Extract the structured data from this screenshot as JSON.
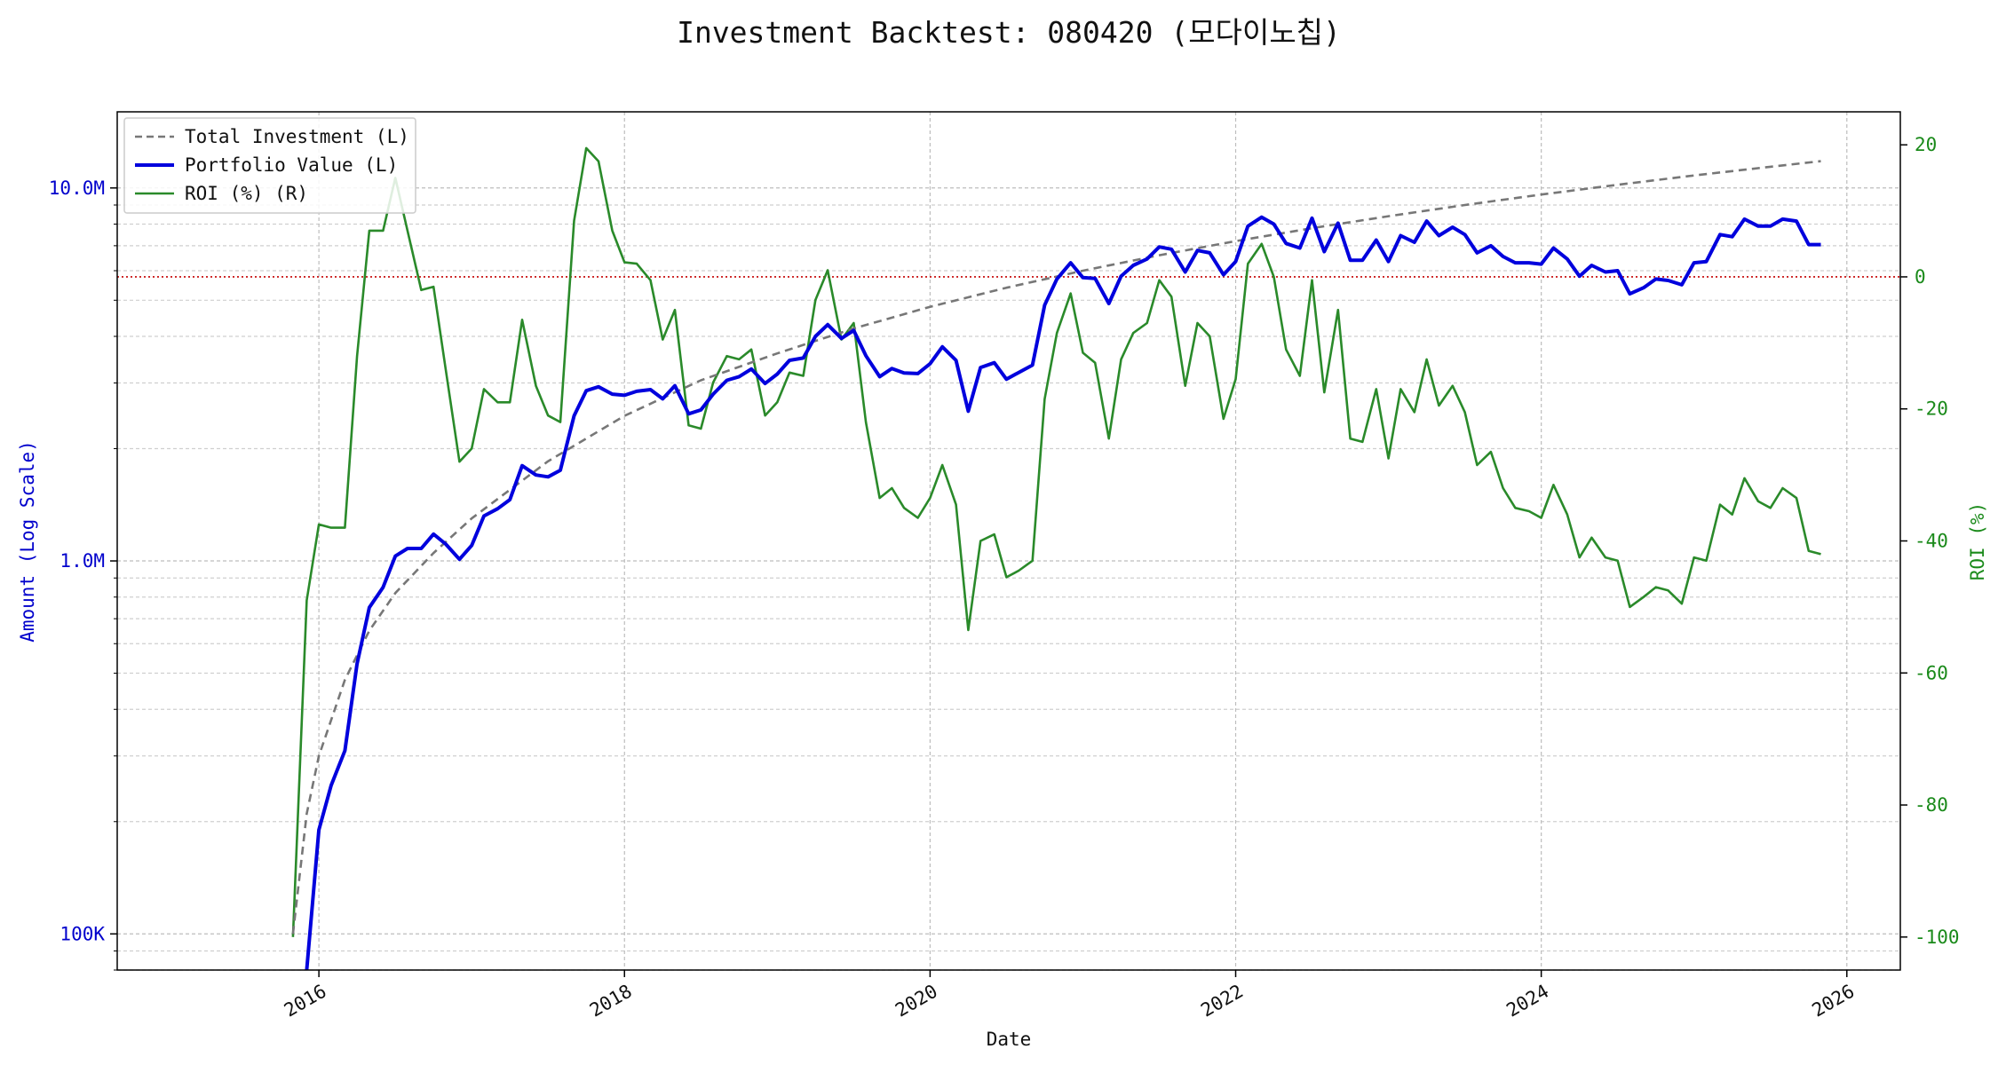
{
  "chart_data": {
    "type": "line",
    "title": "Investment Backtest: 080420 (모다이노칩)",
    "xlabel": "Date",
    "ylabel_left": "Amount (Log Scale)",
    "ylabel_right": "ROI (%)",
    "left_scale": "log",
    "ylim_left": [
      80000,
      16000000
    ],
    "ylim_right": [
      -105,
      25
    ],
    "xlim": [
      2014.68,
      2026.35
    ],
    "grid": true,
    "legend_position": "top-left",
    "left_ticks": [
      {
        "value": 100000,
        "label": "100K"
      },
      {
        "value": 1000000,
        "label": "1.0M"
      },
      {
        "value": 10000000,
        "label": "10.0M"
      }
    ],
    "right_ticks": [
      20,
      0,
      -20,
      -40,
      -60,
      -80,
      -100
    ],
    "x_ticks": [
      {
        "value": 2016,
        "label": "2016"
      },
      {
        "value": 2018,
        "label": "2018"
      },
      {
        "value": 2020,
        "label": "2020"
      },
      {
        "value": 2022,
        "label": "2022"
      },
      {
        "value": 2024,
        "label": "2024"
      },
      {
        "value": 2026,
        "label": "2026"
      }
    ],
    "reference_line_roi": 0,
    "series": [
      {
        "name": "Total Investment (L)",
        "axis": "left",
        "color": "#777777",
        "style": "dashed",
        "x": [
          2015.83,
          2015.92,
          2016.0,
          2016.17,
          2016.33,
          2016.5,
          2016.75,
          2017.0,
          2017.5,
          2018.0,
          2018.5,
          2019.0,
          2019.5,
          2020.0,
          2020.5,
          2021.0,
          2021.5,
          2022.0,
          2022.5,
          2023.0,
          2023.5,
          2024.0,
          2024.5,
          2025.0,
          2025.5,
          2025.83
        ],
        "values": [
          100000,
          210000,
          300000,
          480000,
          650000,
          820000,
          1050000,
          1300000,
          1850000,
          2450000,
          3050000,
          3600000,
          4200000,
          4800000,
          5400000,
          6000000,
          6600000,
          7200000,
          7800000,
          8400000,
          9000000,
          9600000,
          10200000,
          10800000,
          11400000,
          11800000
        ]
      },
      {
        "name": "Portfolio Value (L)",
        "axis": "left",
        "color": "#0000dd",
        "style": "solid",
        "x": [
          2015.92,
          2016.0,
          2016.08,
          2016.17,
          2016.25,
          2016.33,
          2016.42,
          2016.5,
          2016.58,
          2016.67,
          2016.75,
          2016.83,
          2016.92,
          2017.0,
          2017.08,
          2017.17,
          2017.25,
          2017.33,
          2017.42,
          2017.5,
          2017.58,
          2017.67,
          2017.75,
          2017.83,
          2017.92,
          2018.0,
          2018.08,
          2018.17,
          2018.25,
          2018.33,
          2018.42,
          2018.5,
          2018.58,
          2018.67,
          2018.75,
          2018.83,
          2018.92,
          2019.0,
          2019.08,
          2019.17,
          2019.25,
          2019.33,
          2019.42,
          2019.5,
          2019.58,
          2019.67,
          2019.75,
          2019.83,
          2019.92,
          2020.0,
          2020.08,
          2020.17,
          2020.25,
          2020.33,
          2020.42,
          2020.5,
          2020.58,
          2020.67,
          2020.75,
          2020.83,
          2020.92,
          2021.0,
          2021.08,
          2021.17,
          2021.25,
          2021.33,
          2021.42,
          2021.5,
          2021.58,
          2021.67,
          2021.75,
          2021.83,
          2021.92,
          2022.0,
          2022.08,
          2022.17,
          2022.25,
          2022.33,
          2022.42,
          2022.5,
          2022.58,
          2022.67,
          2022.75,
          2022.83,
          2022.92,
          2023.0,
          2023.08,
          2023.17,
          2023.25,
          2023.33,
          2023.42,
          2023.5,
          2023.58,
          2023.67,
          2023.75,
          2023.83,
          2023.92,
          2024.0,
          2024.08,
          2024.17,
          2024.25,
          2024.33,
          2024.42,
          2024.5,
          2024.58,
          2024.67,
          2024.75,
          2024.83,
          2024.92,
          2025.0,
          2025.08,
          2025.17,
          2025.25,
          2025.33,
          2025.42,
          2025.5,
          2025.58,
          2025.67,
          2025.75,
          2025.83
        ],
        "values": [
          80000,
          190000,
          250000,
          310000,
          530000,
          750000,
          850000,
          1030000,
          1080000,
          1080000,
          1180000,
          1110000,
          1010000,
          1100000,
          1320000,
          1380000,
          1460000,
          1800000,
          1700000,
          1680000,
          1750000,
          2450000,
          2860000,
          2930000,
          2800000,
          2780000,
          2850000,
          2880000,
          2720000,
          2950000,
          2480000,
          2540000,
          2800000,
          3050000,
          3120000,
          3270000,
          2990000,
          3170000,
          3450000,
          3500000,
          4000000,
          4300000,
          3950000,
          4150000,
          3550000,
          3120000,
          3280000,
          3190000,
          3180000,
          3380000,
          3750000,
          3450000,
          2520000,
          3300000,
          3400000,
          3070000,
          3200000,
          3350000,
          4850000,
          5700000,
          6300000,
          5750000,
          5720000,
          4900000,
          5800000,
          6200000,
          6450000,
          6950000,
          6850000,
          5950000,
          6800000,
          6700000,
          5850000,
          6350000,
          7900000,
          8350000,
          8000000,
          7100000,
          6900000,
          8300000,
          6750000,
          8050000,
          6400000,
          6400000,
          7250000,
          6350000,
          7450000,
          7150000,
          8150000,
          7450000,
          7850000,
          7500000,
          6700000,
          7000000,
          6550000,
          6300000,
          6300000,
          6250000,
          6900000,
          6450000,
          5800000,
          6200000,
          5950000,
          6000000,
          5200000,
          5400000,
          5700000,
          5650000,
          5500000,
          6300000,
          6350000,
          7500000,
          7400000,
          8250000,
          7900000,
          7900000,
          8250000,
          8150000,
          7050000,
          7050000
        ]
      },
      {
        "name": "ROI (%) (R)",
        "axis": "right",
        "color": "#2a8a2a",
        "style": "solid",
        "x": [
          2015.83,
          2015.92,
          2016.0,
          2016.08,
          2016.17,
          2016.25,
          2016.33,
          2016.42,
          2016.5,
          2016.58,
          2016.67,
          2016.75,
          2016.83,
          2016.92,
          2017.0,
          2017.08,
          2017.17,
          2017.25,
          2017.33,
          2017.42,
          2017.5,
          2017.58,
          2017.67,
          2017.75,
          2017.83,
          2017.92,
          2018.0,
          2018.08,
          2018.17,
          2018.25,
          2018.33,
          2018.42,
          2018.5,
          2018.58,
          2018.67,
          2018.75,
          2018.83,
          2018.92,
          2019.0,
          2019.08,
          2019.17,
          2019.25,
          2019.33,
          2019.42,
          2019.5,
          2019.58,
          2019.67,
          2019.75,
          2019.83,
          2019.92,
          2020.0,
          2020.08,
          2020.17,
          2020.25,
          2020.33,
          2020.42,
          2020.5,
          2020.58,
          2020.67,
          2020.75,
          2020.83,
          2020.92,
          2021.0,
          2021.08,
          2021.17,
          2021.25,
          2021.33,
          2021.42,
          2021.5,
          2021.58,
          2021.67,
          2021.75,
          2021.83,
          2021.92,
          2022.0,
          2022.08,
          2022.17,
          2022.25,
          2022.33,
          2022.42,
          2022.5,
          2022.58,
          2022.67,
          2022.75,
          2022.83,
          2022.92,
          2023.0,
          2023.08,
          2023.17,
          2023.25,
          2023.33,
          2023.42,
          2023.5,
          2023.58,
          2023.67,
          2023.75,
          2023.83,
          2023.92,
          2024.0,
          2024.08,
          2024.17,
          2024.25,
          2024.33,
          2024.42,
          2024.5,
          2024.58,
          2024.67,
          2024.75,
          2024.83,
          2024.92,
          2025.0,
          2025.08,
          2025.17,
          2025.25,
          2025.33,
          2025.42,
          2025.5,
          2025.58,
          2025.67,
          2025.75,
          2025.83
        ],
        "values": [
          -100,
          -49,
          -37.5,
          -38,
          -38,
          -12,
          7,
          7,
          15,
          7,
          -2,
          -1.5,
          -14,
          -28,
          -26,
          -17,
          -19,
          -19,
          -6.5,
          -16.5,
          -21,
          -22,
          8.5,
          19.5,
          17.5,
          7,
          2.2,
          2,
          -0.5,
          -9.5,
          -5,
          -22.5,
          -23,
          -16,
          -12,
          -12.5,
          -11,
          -21,
          -19,
          -14.5,
          -15,
          -3.5,
          1,
          -9.5,
          -7,
          -22,
          -33.5,
          -32,
          -35,
          -36.5,
          -33.5,
          -28.5,
          -34.5,
          -53.5,
          -40,
          -39,
          -45.5,
          -44.5,
          -43,
          -18.5,
          -8.5,
          -2.5,
          -11.5,
          -13,
          -24.5,
          -12.5,
          -8.5,
          -7,
          -0.5,
          -3,
          -16.5,
          -7,
          -9,
          -21.5,
          -15.5,
          2,
          5,
          0,
          -11,
          -15,
          -0.5,
          -17.5,
          -5,
          -24.5,
          -25,
          -17,
          -27.5,
          -17,
          -20.5,
          -12.5,
          -19.5,
          -16.5,
          -20.5,
          -28.5,
          -26.5,
          -32,
          -35,
          -35.5,
          -36.5,
          -31.5,
          -36,
          -42.5,
          -39.5,
          -42.5,
          -43,
          -50,
          -48.5,
          -47,
          -47.5,
          -49.5,
          -42.5,
          -43,
          -34.5,
          -36,
          -30.5,
          -34,
          -35,
          -32,
          -33.5,
          -41.5,
          -42
        ]
      }
    ]
  }
}
